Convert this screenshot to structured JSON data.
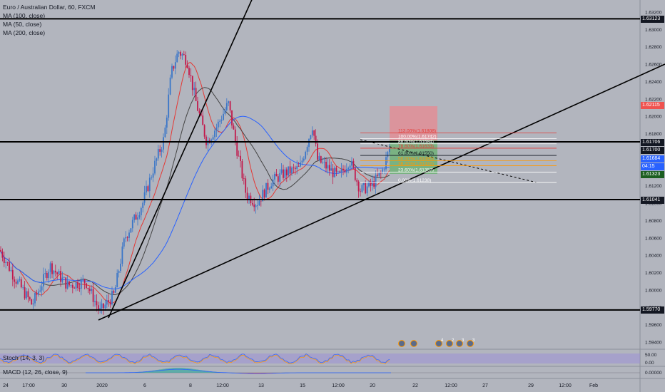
{
  "legend": {
    "title": "Euro / Australian Dollar, 60, FXCM",
    "ma100": "MA (100, close)",
    "ma50": "MA (50, close)",
    "ma200": "MA (200, close)"
  },
  "indicators": {
    "stoch": "Stoch (14, 3, 3)",
    "macd": "MACD (12, 26, close, 9)"
  },
  "price_axis": {
    "ticks": [
      "1.63200",
      "1.63000",
      "1.62800",
      "1.62600",
      "1.62400",
      "1.62200",
      "1.62000",
      "1.61800",
      "1.61600",
      "1.61400",
      "1.61200",
      "1.61000",
      "1.60800",
      "1.60600",
      "1.60400",
      "1.60200",
      "1.60000",
      "1.59800",
      "1.59600",
      "1.59400"
    ],
    "stoch_ticks": [
      "50.00",
      "0.00"
    ],
    "macd_ticks": [
      "0.00000"
    ]
  },
  "price_tags": {
    "t1": "1.63123",
    "t2": "1.62115",
    "t3": "1.61706",
    "t4": "1.61700",
    "t5": "1.61684",
    "t6": "04:15",
    "t7": "1.61323",
    "t8": "1.61041",
    "t9": "1.59770"
  },
  "time_axis": [
    "24",
    "17:00",
    "30",
    "2020",
    "6",
    "8",
    "12:00",
    "13",
    "15",
    "12:00",
    "20",
    "22",
    "12:00",
    "27",
    "29",
    "12:00",
    "Feb"
  ],
  "fib_labels": {
    "f113": "113.00%(1.61808)",
    "f100": "100.00%(1.61742)",
    "f886": "88.60%(1.61684)",
    "f786": "78.60%(1.61633)",
    "f618": "61.80%(1.61550)",
    "f50": "50.00%(1.61490)",
    "f382": "38.20%(1.61431)",
    "f236": "23.60%(1.61357)",
    "f0": "0.00%(1.61238)"
  },
  "event_badges": [
    "4",
    "2",
    "3",
    "3"
  ],
  "colors": {
    "background": "#b2b5be",
    "candle_up": "#3a76c8",
    "candle_down": "#c2184b",
    "ma100": "#e53935",
    "ma50": "#444444",
    "ma200": "#2962ff",
    "stop_zone": "#e88a90",
    "target_zone": "#4caf50",
    "price_tag_red": "#ef5350",
    "price_tag_green": "#26a69a",
    "price_tag_blue": "#2962ff"
  }
}
